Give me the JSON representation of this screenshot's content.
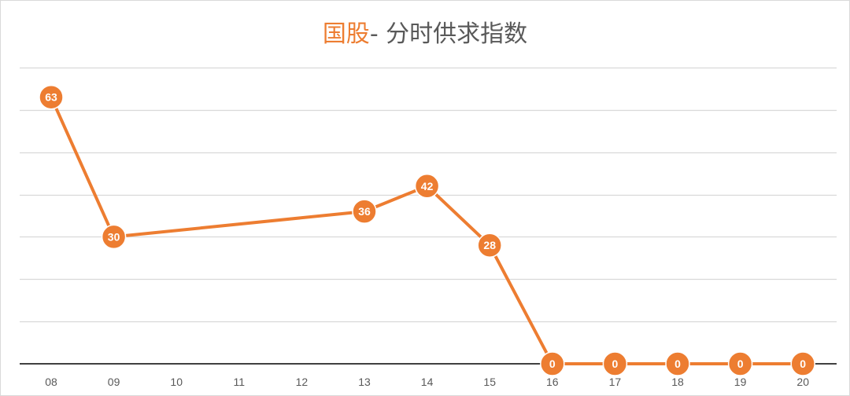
{
  "chart_data": {
    "type": "line",
    "title_highlight": "国股",
    "title_rest": "- 分时供求指数",
    "categories": [
      "08",
      "09",
      "10",
      "11",
      "12",
      "13",
      "14",
      "15",
      "16",
      "17",
      "18",
      "19",
      "20"
    ],
    "series": [
      {
        "values": [
          63,
          30,
          null,
          null,
          null,
          36,
          42,
          28,
          0,
          0,
          0,
          0,
          0
        ],
        "color": "#ed7d31"
      }
    ],
    "ylim": [
      0,
      70
    ],
    "y_grid_step": 10,
    "grid": true,
    "legend": "none",
    "gridline_color": "#d9d9d9",
    "axis_color": "#404040"
  }
}
